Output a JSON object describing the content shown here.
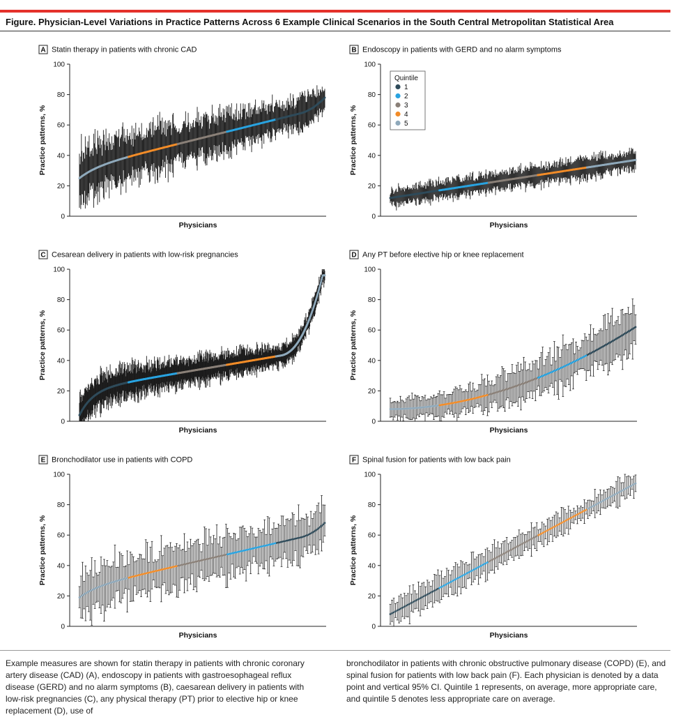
{
  "figure_title": "Figure. Physician-Level Variations in Practice Patterns Across 6 Example Clinical Scenarios in the South Central Metropolitan Statistical Area",
  "caption_left": "Example measures are shown for statin therapy in patients with chronic coronary artery disease (CAD) (A), endoscopy in patients with gastroesophageal reflux disease (GERD) and no alarm symptoms (B), caesarean delivery in patients with low-risk pregnancies (C), any physical therapy (PT) prior to elective hip or knee replacement (D), use of",
  "caption_right": "bronchodilator in patients with chronic obstructive pulmonary disease (COPD) (E), and spinal fusion for patients with low back pain (F). Each physician is denoted by a data point and vertical 95% CI. Quintile 1 represents, on average, more appropriate care, and quintile 5 denotes less appropriate care on average.",
  "quintile_colors": {
    "1": "#2f4b5a",
    "2": "#29a3e0",
    "3": "#8a8078",
    "4": "#f28c28",
    "5": "#8fa9bb"
  },
  "ci_color": "#1a1a1a",
  "chart_data": [
    {
      "panel": "A",
      "type": "scatter",
      "title": "Statin therapy in patients with chronic CAD",
      "xlabel": "Physicians",
      "ylabel": "Practice patterns, %",
      "ylim": [
        0,
        100
      ],
      "yticks": [
        "0",
        "20",
        "40",
        "60",
        "80",
        "100"
      ],
      "n_physicians": 380,
      "estimate_range": [
        25,
        78
      ],
      "ci_halfwidth": [
        16,
        8
      ],
      "curve": "linear-sigmoid",
      "quintile_order": [
        5,
        4,
        3,
        2,
        1
      ],
      "legend": null
    },
    {
      "panel": "B",
      "type": "scatter",
      "title": "Endoscopy in patients with GERD and no alarm symptoms",
      "xlabel": "Physicians",
      "ylabel": "Practice patterns, %",
      "ylim": [
        0,
        100
      ],
      "yticks": [
        "0",
        "20",
        "40",
        "60",
        "80",
        "100"
      ],
      "n_physicians": 360,
      "estimate_range": [
        12,
        37
      ],
      "ci_halfwidth": [
        5,
        6
      ],
      "curve": "linear",
      "quintile_order": [
        1,
        2,
        3,
        4,
        5
      ],
      "legend": {
        "title": "Quintile",
        "entries": [
          "1",
          "2",
          "3",
          "4",
          "5"
        ],
        "position": "top-left"
      }
    },
    {
      "panel": "C",
      "type": "scatter",
      "title": "Cesarean delivery in patients with low-risk pregnancies",
      "xlabel": "Physicians",
      "ylabel": "Practice patterns, %",
      "ylim": [
        0,
        100
      ],
      "yticks": [
        "0",
        "20",
        "40",
        "60",
        "80",
        "100"
      ],
      "n_physicians": 560,
      "estimate_range": [
        4,
        96
      ],
      "ci_halfwidth": [
        10,
        5
      ],
      "curve": "steep-tails",
      "quintile_order": [
        1,
        2,
        3,
        4,
        5
      ],
      "legend": null
    },
    {
      "panel": "D",
      "type": "scatter",
      "title": "Any PT before elective hip or knee replacement",
      "xlabel": "Physicians",
      "ylabel": "Practice patterns, %",
      "ylim": [
        0,
        100
      ],
      "yticks": [
        "0",
        "20",
        "40",
        "60",
        "80",
        "100"
      ],
      "n_physicians": 170,
      "estimate_range": [
        8,
        62
      ],
      "ci_halfwidth": [
        6,
        14
      ],
      "curve": "convex",
      "quintile_order": [
        5,
        4,
        3,
        2,
        1
      ],
      "legend": null
    },
    {
      "panel": "E",
      "type": "scatter",
      "title": "Bronchodilator use in patients with COPD",
      "xlabel": "Physicians",
      "ylabel": "Practice patterns, %",
      "ylim": [
        0,
        100
      ],
      "yticks": [
        "0",
        "20",
        "40",
        "60",
        "80",
        "100"
      ],
      "n_physicians": 160,
      "estimate_range": [
        19,
        68
      ],
      "ci_halfwidth": [
        14,
        12
      ],
      "curve": "linear-sigmoid",
      "quintile_order": [
        5,
        4,
        3,
        2,
        1
      ],
      "legend": null
    },
    {
      "panel": "F",
      "type": "scatter",
      "title": "Spinal fusion for patients with low back pain",
      "xlabel": "Physicians",
      "ylabel": "Practice patterns, %",
      "ylim": [
        0,
        100
      ],
      "yticks": [
        "0",
        "20",
        "40",
        "60",
        "80",
        "100"
      ],
      "n_physicians": 140,
      "estimate_range": [
        8,
        94
      ],
      "ci_halfwidth": [
        8,
        6
      ],
      "curve": "linear",
      "quintile_order": [
        1,
        2,
        3,
        4,
        5
      ],
      "legend": null
    }
  ]
}
